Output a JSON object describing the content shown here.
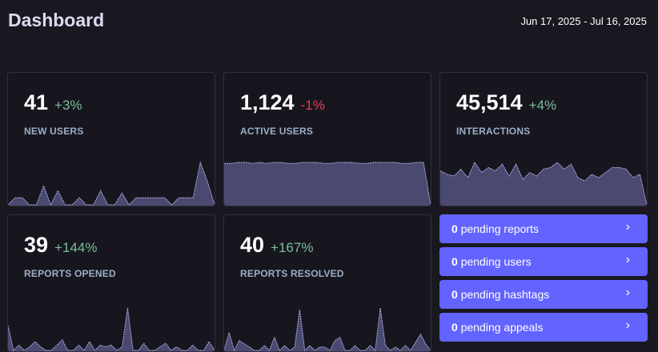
{
  "header": {
    "title": "Dashboard",
    "date_range": "Jun 17, 2025 - Jul 16, 2025"
  },
  "metrics": [
    {
      "value": "41",
      "delta": "+3%",
      "trend": "positive",
      "label": "NEW USERS",
      "sparkline": [
        0,
        3,
        3,
        0,
        0,
        8,
        0,
        6,
        0,
        0,
        3,
        0,
        0,
        6,
        0,
        0,
        5,
        0,
        3,
        3,
        3,
        3,
        3,
        0,
        3,
        3,
        3,
        18,
        10,
        0
      ]
    },
    {
      "value": "1,124",
      "delta": "-1%",
      "trend": "negative",
      "label": "ACTIVE USERS",
      "sparkline": [
        41,
        41,
        42,
        42,
        41,
        42,
        41,
        42,
        42,
        41,
        41,
        42,
        42,
        42,
        41,
        41,
        42,
        42,
        42,
        41,
        41,
        42,
        42,
        42,
        42,
        41,
        41,
        42,
        42,
        0
      ]
    },
    {
      "value": "45,514",
      "delta": "+4%",
      "trend": "positive",
      "label": "INTERACTIONS",
      "sparkline": [
        20,
        18,
        17,
        21,
        16,
        25,
        19,
        22,
        20,
        24,
        17,
        24,
        15,
        19,
        17,
        21,
        22,
        25,
        21,
        24,
        16,
        14,
        18,
        16,
        19,
        22,
        22,
        21,
        16,
        18,
        0
      ]
    },
    {
      "value": "39",
      "delta": "+144%",
      "trend": "positive",
      "label": "REPORTS OPENED",
      "sparkline": [
        14,
        0,
        3,
        0,
        2,
        5,
        2,
        0,
        0,
        3,
        6,
        0,
        0,
        3,
        0,
        5,
        0,
        3,
        2,
        3,
        0,
        2,
        24,
        0,
        0,
        4,
        0,
        0,
        2,
        4,
        0,
        2,
        0,
        0,
        3,
        0,
        0,
        5,
        0
      ]
    },
    {
      "value": "40",
      "delta": "+167%",
      "trend": "positive",
      "label": "REPORTS RESOLVED",
      "sparkline": [
        0,
        11,
        0,
        6,
        4,
        2,
        0,
        0,
        3,
        0,
        8,
        0,
        3,
        0,
        2,
        25,
        0,
        3,
        0,
        2,
        2,
        0,
        6,
        8,
        0,
        0,
        3,
        0,
        0,
        3,
        0,
        26,
        3,
        0,
        2,
        0,
        3,
        0,
        5,
        10,
        4,
        0
      ]
    }
  ],
  "pending": [
    {
      "count": "0",
      "label": "pending reports"
    },
    {
      "count": "0",
      "label": "pending users"
    },
    {
      "count": "0",
      "label": "pending hashtags"
    },
    {
      "count": "0",
      "label": "pending appeals"
    }
  ],
  "icons": {
    "chevron": "chevron-right-icon"
  },
  "colors": {
    "background": "#191820",
    "card_background": "#17161e",
    "accent": "#6364ff",
    "positive": "#79bd9a",
    "negative": "#df405a",
    "spark_fill": "#4a4970",
    "spark_line": "#b4b3ea"
  }
}
